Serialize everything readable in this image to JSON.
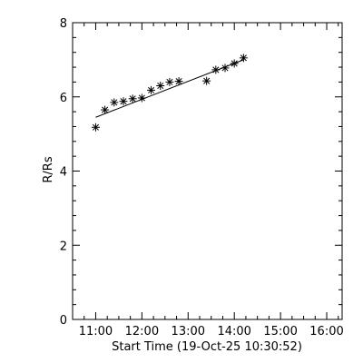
{
  "chart_data": {
    "type": "scatter",
    "title": "",
    "xlabel": "Start Time (19-Oct-25 10:30:52)",
    "ylabel": "R/Rs",
    "x_ticks": [
      "11:00",
      "12:00",
      "13:00",
      "14:00",
      "15:00",
      "16:00"
    ],
    "y_ticks": [
      "0",
      "2",
      "4",
      "6",
      "8"
    ],
    "xlim": [
      "10:30",
      "16:20"
    ],
    "ylim": [
      0,
      8
    ],
    "grid": false,
    "series": [
      {
        "marker": "asterisk",
        "points": [
          {
            "x": "11:00",
            "y": 5.18
          },
          {
            "x": "11:12",
            "y": 5.65
          },
          {
            "x": "11:24",
            "y": 5.85
          },
          {
            "x": "11:36",
            "y": 5.88
          },
          {
            "x": "11:48",
            "y": 5.95
          },
          {
            "x": "12:00",
            "y": 5.97
          },
          {
            "x": "12:12",
            "y": 6.18
          },
          {
            "x": "12:24",
            "y": 6.3
          },
          {
            "x": "12:36",
            "y": 6.4
          },
          {
            "x": "12:48",
            "y": 6.42
          },
          {
            "x": "13:24",
            "y": 6.43
          },
          {
            "x": "13:36",
            "y": 6.73
          },
          {
            "x": "13:48",
            "y": 6.78
          },
          {
            "x": "14:00",
            "y": 6.9
          },
          {
            "x": "14:12",
            "y": 7.05
          }
        ]
      }
    ],
    "fit_line": [
      {
        "x": "11:00",
        "y": 5.45
      },
      {
        "x": "14:12",
        "y": 7.0
      }
    ],
    "colors": {
      "background": "#ffffff",
      "foreground": "#000000"
    }
  }
}
